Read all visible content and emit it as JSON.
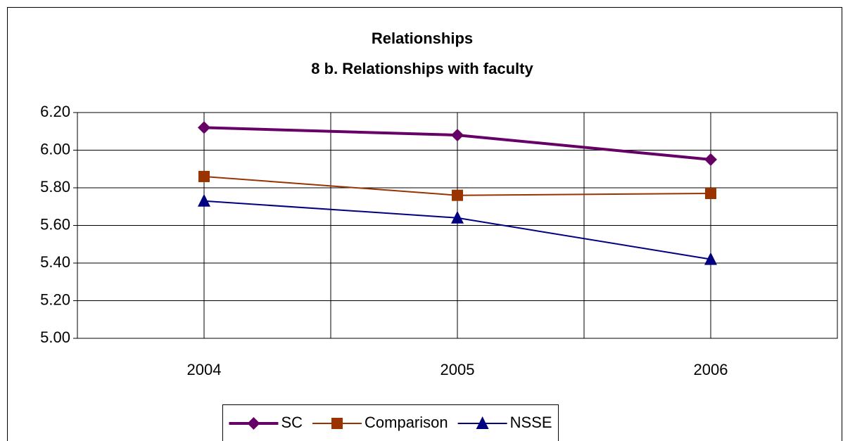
{
  "chart_data": {
    "type": "line",
    "title": "Relationships",
    "subtitle": "8 b. Relationships with faculty",
    "categories": [
      "2004",
      "2005",
      "2006"
    ],
    "series": [
      {
        "name": "SC",
        "color": "#660066",
        "marker": "diamond",
        "line_width": 4,
        "values": [
          6.12,
          6.08,
          5.95
        ]
      },
      {
        "name": "Comparison",
        "color": "#993300",
        "marker": "square",
        "line_width": 2,
        "values": [
          5.86,
          5.76,
          5.77
        ]
      },
      {
        "name": "NSSE",
        "color": "#000080",
        "marker": "triangle",
        "line_width": 2,
        "values": [
          5.73,
          5.64,
          5.42
        ]
      }
    ],
    "ylim": [
      5,
      6.2
    ],
    "yticks": [
      {
        "value": 5,
        "label": "5.00"
      },
      {
        "value": 5.2,
        "label": "5.20"
      },
      {
        "value": 5.4,
        "label": "5.40"
      },
      {
        "value": 5.6,
        "label": "5.60"
      },
      {
        "value": 5.8,
        "label": "5.80"
      },
      {
        "value": 6,
        "label": "6.00"
      },
      {
        "value": 6.2,
        "label": "6.20"
      }
    ],
    "grid": true,
    "legend": "bottom"
  }
}
